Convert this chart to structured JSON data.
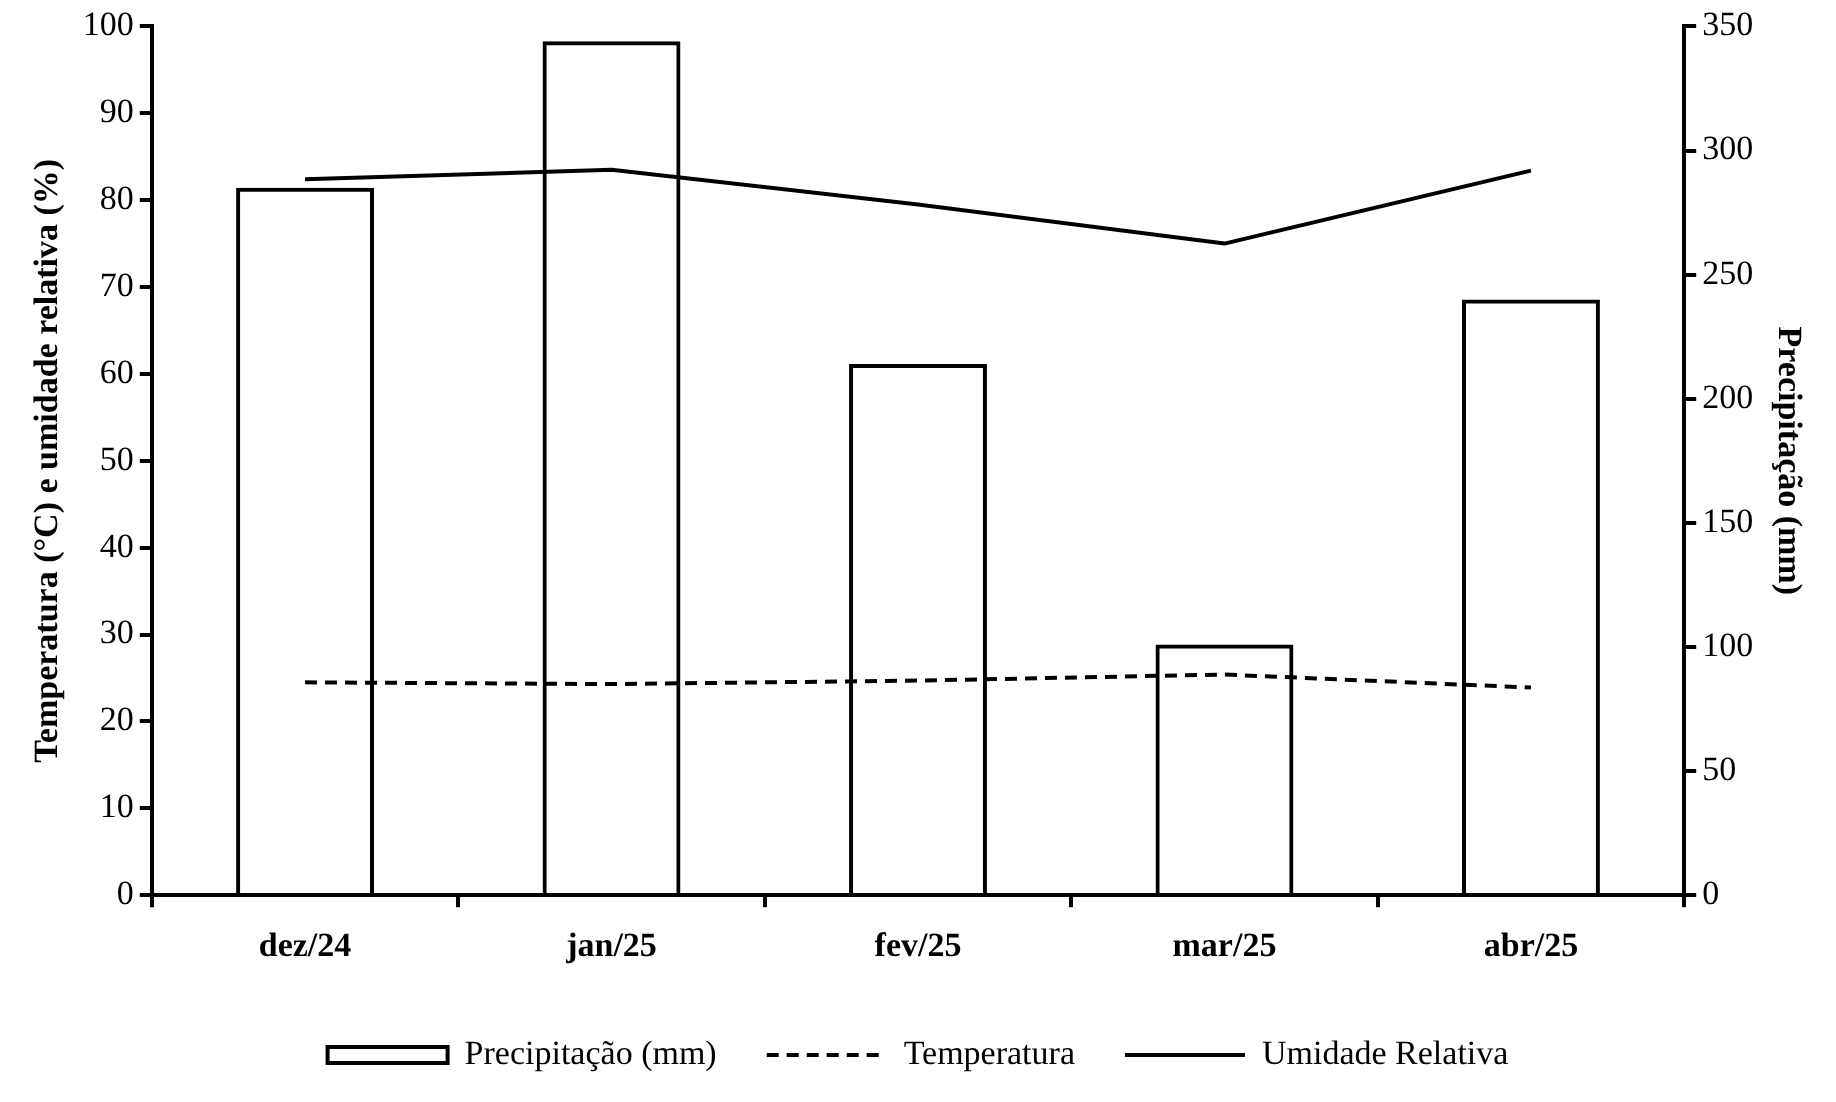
{
  "chart_data": {
    "type": "bar",
    "ylabel": "Temperatura (°C) e umidade relativa (%)",
    "y2label": "Precipitação (mm)",
    "categories": [
      "dez/24",
      "jan/25",
      "fev/25",
      "mar/25",
      "abr/25"
    ],
    "series": [
      {
        "name": "Precipitação (mm)",
        "type": "bar",
        "axis": "y2",
        "color": "#000000",
        "values": [
          285,
          344,
          214,
          101,
          240
        ]
      },
      {
        "name": "Temperatura",
        "type": "line",
        "line_style": "dashed",
        "color": "#000000",
        "values": [
          24.5,
          24.3,
          24.7,
          25.4,
          23.9
        ]
      },
      {
        "name": "Umidade Relativa",
        "type": "line",
        "line_style": "solid",
        "color": "#000000",
        "values": [
          82.4,
          83.5,
          79.5,
          75.0,
          83.4
        ]
      }
    ],
    "ylim": [
      0,
      100
    ],
    "yticks": [
      0,
      10,
      20,
      30,
      40,
      50,
      60,
      70,
      80,
      90,
      100
    ],
    "y2lim": [
      0,
      350
    ],
    "y2ticks": [
      0,
      50,
      100,
      150,
      200,
      250,
      300,
      350
    ],
    "grid": false,
    "legend": "bottom",
    "marker": "none"
  }
}
